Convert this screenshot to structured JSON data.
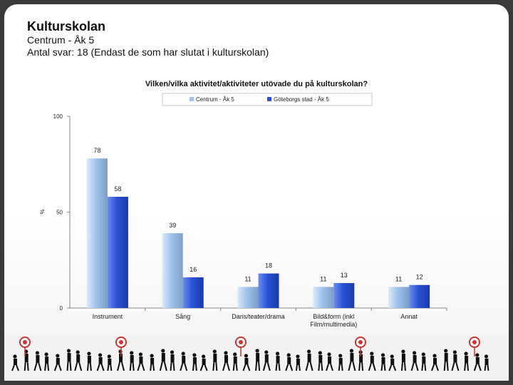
{
  "header": {
    "title": "Kulturskolan",
    "subtitle": "Centrum - Åk 5",
    "responses": "Antal svar: 18 (Endast de som har slutat i kulturskolan)"
  },
  "chart_data": {
    "type": "bar",
    "title": "Vilken/vilka aktivitet/aktiviteter utövade du på kulturskolan?",
    "ylabel": "%",
    "ylim": [
      0,
      100
    ],
    "yticks": [
      0,
      50,
      100
    ],
    "categories": [
      "Instrument",
      "Sång",
      "Dans/teater/drama",
      "Bild&form (inkl Film/multimedia)",
      "Annat"
    ],
    "category_lines": [
      [
        "Instrument"
      ],
      [
        "Sång"
      ],
      [
        "Dans/teater/drama"
      ],
      [
        "Bild&form (inkl",
        "Film/multimedia)"
      ],
      [
        "Annat"
      ]
    ],
    "series": [
      {
        "name": "Centrum - Åk 5",
        "values": [
          78,
          39,
          11,
          11,
          11
        ],
        "color": "#9ec3ec"
      },
      {
        "name": "Göteborgs stad - Åk 5",
        "values": [
          58,
          16,
          18,
          13,
          12
        ],
        "color": "#2a52d6"
      }
    ],
    "legend": "top-center",
    "grid": false
  }
}
